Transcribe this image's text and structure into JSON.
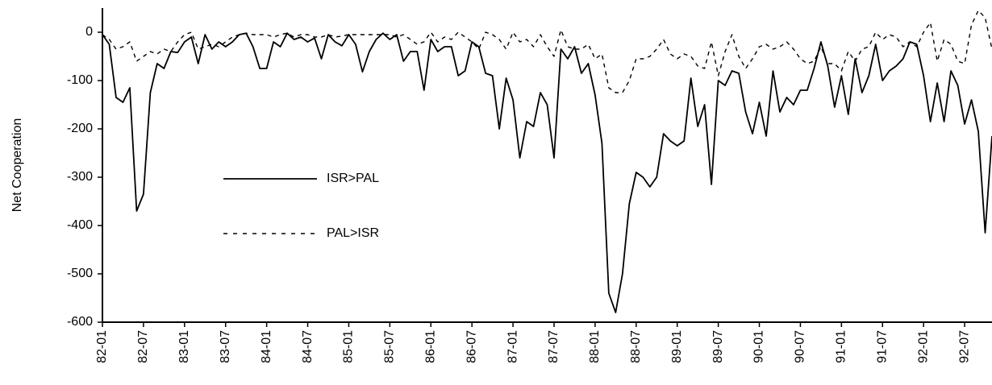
{
  "chart_data": {
    "type": "line",
    "y_label": "Net Cooperation",
    "categories": [
      "82-01",
      null,
      null,
      null,
      null,
      null,
      "82-07",
      null,
      null,
      null,
      null,
      null,
      "83-01",
      null,
      null,
      null,
      null,
      null,
      "83-07",
      null,
      null,
      null,
      null,
      null,
      "84-01",
      null,
      null,
      null,
      null,
      null,
      "84-07",
      null,
      null,
      null,
      null,
      null,
      "85-01",
      null,
      null,
      null,
      null,
      null,
      "85-07",
      null,
      null,
      null,
      null,
      null,
      "86-01",
      null,
      null,
      null,
      null,
      null,
      "86-07",
      null,
      null,
      null,
      null,
      null,
      "87-01",
      null,
      null,
      null,
      null,
      null,
      "87-07",
      null,
      null,
      null,
      null,
      null,
      "88-01",
      null,
      null,
      null,
      null,
      null,
      "88-07",
      null,
      null,
      null,
      null,
      null,
      "89-01",
      null,
      null,
      null,
      null,
      null,
      "89-07",
      null,
      null,
      null,
      null,
      null,
      "90-01",
      null,
      null,
      null,
      null,
      null,
      "90-07",
      null,
      null,
      null,
      null,
      null,
      "91-01",
      null,
      null,
      null,
      null,
      null,
      "91-07",
      null,
      null,
      null,
      null,
      null,
      "92-01",
      null,
      null,
      null,
      null,
      null,
      "92-07",
      null,
      null,
      null,
      null
    ],
    "series": [
      {
        "name": "ISR>PAL",
        "color": "#000000",
        "line_style": "solid",
        "values": [
          -5,
          -25,
          -135,
          -145,
          -115,
          -370,
          -335,
          -125,
          -65,
          -75,
          -40,
          -42,
          -20,
          -10,
          -65,
          -5,
          -35,
          -20,
          -30,
          -20,
          -5,
          -2,
          -30,
          -75,
          -75,
          -20,
          -30,
          -2,
          -15,
          -10,
          -20,
          -12,
          -55,
          -5,
          -20,
          -28,
          -5,
          -25,
          -82,
          -40,
          -15,
          -2,
          -15,
          -5,
          -60,
          -40,
          -40,
          -120,
          -15,
          -40,
          -30,
          -30,
          -90,
          -80,
          -20,
          -30,
          -85,
          -90,
          -200,
          -95,
          -140,
          -260,
          -185,
          -195,
          -125,
          -150,
          -260,
          -35,
          -55,
          -30,
          -85,
          -65,
          -130,
          -230,
          -540,
          -580,
          -500,
          -355,
          -290,
          -300,
          -320,
          -300,
          -210,
          -225,
          -235,
          -225,
          -95,
          -195,
          -150,
          -315,
          -100,
          -110,
          -80,
          -85,
          -165,
          -210,
          -145,
          -215,
          -80,
          -165,
          -135,
          -150,
          -120,
          -120,
          -75,
          -20,
          -70,
          -155,
          -90,
          -170,
          -55,
          -125,
          -90,
          -25,
          -100,
          -80,
          -70,
          -55,
          -20,
          -25,
          -90,
          -185,
          -105,
          -185,
          -80,
          -110,
          -190,
          -140,
          -205,
          -415,
          -215
        ]
      },
      {
        "name": "PAL>ISR",
        "color": "#000000",
        "line_style": "dashed",
        "values": [
          -5,
          -15,
          -35,
          -30,
          -20,
          -60,
          -50,
          -40,
          -45,
          -35,
          -40,
          -20,
          -5,
          0,
          -35,
          -30,
          -25,
          -30,
          -20,
          -10,
          -5,
          -2,
          -5,
          -5,
          -5,
          -10,
          -5,
          -2,
          -10,
          -5,
          -5,
          -10,
          -10,
          -5,
          -10,
          -8,
          -5,
          -5,
          -5,
          -5,
          -5,
          -5,
          -5,
          -10,
          -5,
          -15,
          -25,
          -20,
          0,
          -20,
          -10,
          -15,
          0,
          -10,
          -20,
          -35,
          0,
          -5,
          -15,
          -35,
          0,
          -20,
          -15,
          -30,
          -5,
          -30,
          -50,
          5,
          -30,
          -35,
          -35,
          -25,
          -55,
          -45,
          -115,
          -125,
          -125,
          -100,
          -55,
          -55,
          -50,
          -35,
          -15,
          -45,
          -55,
          -45,
          -50,
          -70,
          -75,
          -20,
          -90,
          -40,
          -5,
          -50,
          -75,
          -55,
          -30,
          -25,
          -35,
          -30,
          -20,
          -35,
          -55,
          -65,
          -60,
          -30,
          -65,
          -65,
          -80,
          -40,
          -60,
          -35,
          -30,
          0,
          -15,
          -5,
          -10,
          -30,
          -20,
          -30,
          0,
          20,
          -60,
          -15,
          -25,
          -60,
          -65,
          15,
          45,
          30,
          -35
        ]
      }
    ],
    "ylim": [
      -600,
      50
    ],
    "yticks": [
      0,
      -100,
      -200,
      -300,
      -400,
      -500,
      -600
    ],
    "legend": "inside-left"
  }
}
